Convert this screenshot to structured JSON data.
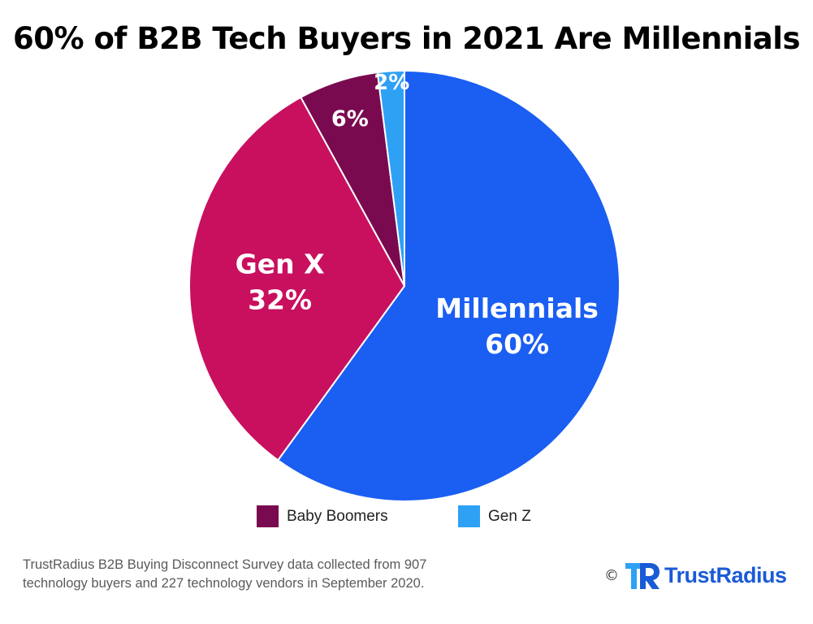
{
  "chart_data": {
    "type": "pie",
    "title": "60% of B2B Tech Buyers in 2021 Are Millennials",
    "slices": [
      {
        "name": "Millennials",
        "value": 60,
        "label_name": "Millennials",
        "label_value": "60%",
        "color": "#1a5ef2"
      },
      {
        "name": "Gen X",
        "value": 32,
        "label_name": "Gen X",
        "label_value": "32%",
        "color": "#c8105f"
      },
      {
        "name": "Baby Boomers",
        "value": 6,
        "label_name": "",
        "label_value": "6%",
        "color": "#7a0a4f"
      },
      {
        "name": "Gen Z",
        "value": 2,
        "label_name": "",
        "label_value": "2%",
        "color": "#2ea1f5"
      }
    ],
    "legend": [
      {
        "label": "Baby Boomers",
        "color": "#7a0a4f"
      },
      {
        "label": "Gen Z",
        "color": "#2ea1f5"
      }
    ],
    "legend_position": "bottom"
  },
  "footnote": {
    "line1": "TrustRadius B2B Buying Disconnect Survey data collected from 907",
    "line2": "technology buyers and 227 technology vendors in September 2020."
  },
  "brand": {
    "copyright": "©",
    "name": "TrustRadius",
    "logo_icon": "trustradius-logo-icon",
    "color": "#1a5bd6"
  }
}
